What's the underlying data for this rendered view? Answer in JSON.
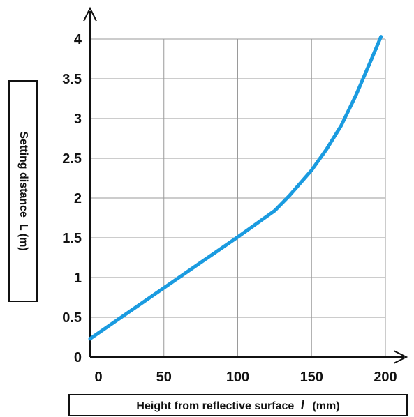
{
  "chart_data": {
    "type": "line",
    "title": "",
    "xlabel": {
      "prefix": "Height from reflective surface",
      "symbol": "l",
      "unit": "(mm)"
    },
    "ylabel": "Setting distance  L (m)",
    "xlim": [
      0,
      200
    ],
    "ylim": [
      0,
      4
    ],
    "x_ticks": [
      "0",
      "50",
      "100",
      "150",
      "200"
    ],
    "y_ticks": [
      "0",
      "0.5",
      "1",
      "1.5",
      "2",
      "2.5",
      "3",
      "3.5",
      "4"
    ],
    "grid": true,
    "series": [
      {
        "color": "#1a9be0",
        "x": [
          0,
          50,
          100,
          125,
          135,
          150,
          160,
          170,
          180,
          190,
          197
        ],
        "y": [
          0.23,
          0.87,
          1.51,
          1.84,
          2.03,
          2.35,
          2.61,
          2.91,
          3.29,
          3.72,
          4.03
        ]
      }
    ]
  }
}
